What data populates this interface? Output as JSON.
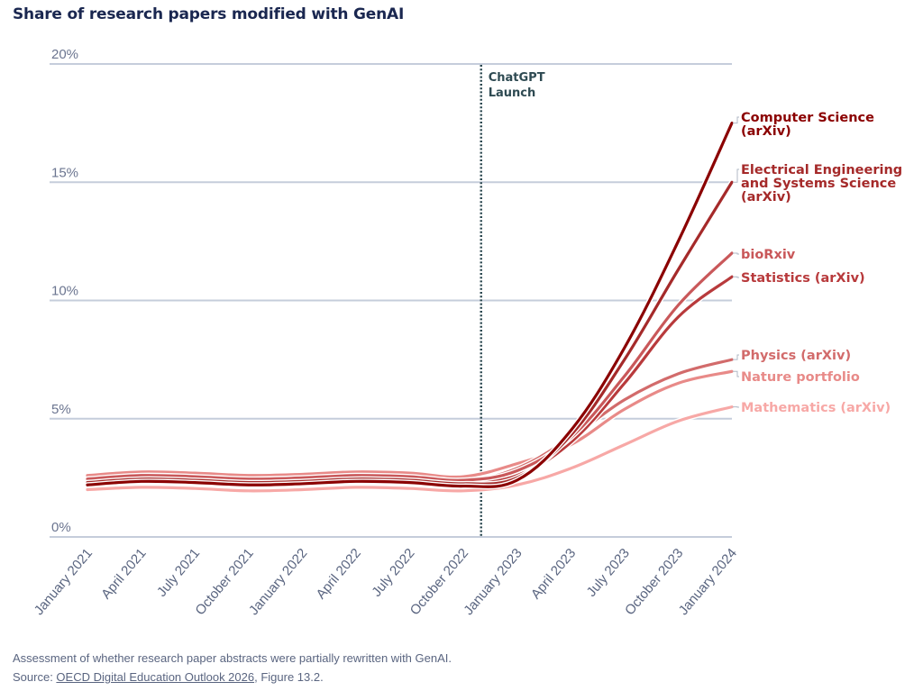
{
  "title": "Share of research papers modified with GenAI",
  "footnote": {
    "line1": "Assessment of whether research paper abstracts were partially rewritten with GenAI.",
    "source_prefix": "Source: ",
    "source_link": "OECD Digital Education Outlook 2026",
    "source_suffix": ", Figure 13.2."
  },
  "chart_data": {
    "type": "line",
    "title": "Share of research papers modified with GenAI",
    "xlabel": "",
    "ylabel": "",
    "ylim": [
      0,
      20
    ],
    "yticks": [
      0,
      5,
      10,
      15,
      20
    ],
    "ytick_labels": [
      "0%",
      "5%",
      "10%",
      "15%",
      "20%"
    ],
    "grid": "horizontal",
    "x": [
      "January 2021",
      "April 2021",
      "July 2021",
      "October 2021",
      "January 2022",
      "April 2022",
      "July 2022",
      "October 2022",
      "January 2023",
      "April 2023",
      "July 2023",
      "October 2023",
      "January 2024"
    ],
    "annotations": [
      {
        "type": "vline",
        "at": "November 2022",
        "position_index": 7.33,
        "label": [
          "ChatGPT",
          "Launch"
        ],
        "color": "#2e4a52"
      }
    ],
    "legend": "direct-labels-right",
    "series": [
      {
        "name": "Computer Science (arXiv)",
        "label_lines": [
          "Computer Science",
          "(arXiv)"
        ],
        "color": "#8b0000",
        "values": [
          2.2,
          2.35,
          2.3,
          2.2,
          2.25,
          2.35,
          2.3,
          2.15,
          2.4,
          4.5,
          8.0,
          12.5,
          17.5
        ]
      },
      {
        "name": "Electrical Engineering and Systems Science (arXiv)",
        "label_lines": [
          "Electrical Engineering",
          "and Systems Science",
          "(arXiv)"
        ],
        "color": "#a52a2a",
        "values": [
          2.3,
          2.45,
          2.4,
          2.3,
          2.35,
          2.45,
          2.4,
          2.25,
          2.5,
          4.3,
          7.5,
          11.3,
          15.0
        ]
      },
      {
        "name": "bioRxiv",
        "label_lines": [
          "bioRxiv"
        ],
        "color": "#c9585a",
        "values": [
          2.45,
          2.6,
          2.55,
          2.45,
          2.5,
          2.6,
          2.55,
          2.4,
          2.8,
          4.2,
          6.8,
          9.8,
          12.0
        ]
      },
      {
        "name": "Statistics (arXiv)",
        "label_lines": [
          "Statistics (arXiv)"
        ],
        "color": "#b83a3c",
        "values": [
          2.35,
          2.5,
          2.45,
          2.35,
          2.4,
          2.5,
          2.45,
          2.3,
          2.6,
          4.0,
          6.5,
          9.3,
          11.0
        ]
      },
      {
        "name": "Physics (arXiv)",
        "label_lines": [
          "Physics (arXiv)"
        ],
        "color": "#d26b6b",
        "values": [
          2.4,
          2.55,
          2.5,
          2.4,
          2.45,
          2.55,
          2.5,
          2.35,
          2.9,
          4.2,
          5.8,
          6.9,
          7.5
        ]
      },
      {
        "name": "Nature portfolio",
        "label_lines": [
          "Nature portfolio"
        ],
        "color": "#e88a88",
        "values": [
          2.6,
          2.75,
          2.7,
          2.6,
          2.65,
          2.75,
          2.7,
          2.55,
          3.1,
          3.9,
          5.4,
          6.5,
          7.0
        ]
      },
      {
        "name": "Mathematics (arXiv)",
        "label_lines": [
          "Mathematics (arXiv)"
        ],
        "color": "#f7a8a6",
        "values": [
          2.0,
          2.1,
          2.05,
          1.95,
          2.0,
          2.1,
          2.05,
          1.95,
          2.2,
          2.9,
          3.9,
          4.9,
          5.5
        ]
      }
    ]
  }
}
